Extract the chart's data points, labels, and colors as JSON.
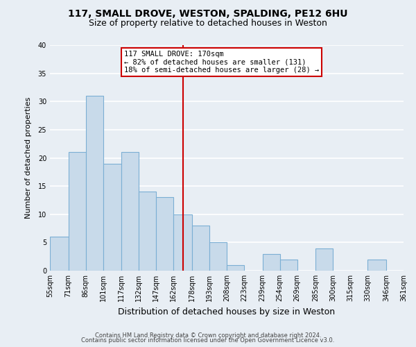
{
  "title": "117, SMALL DROVE, WESTON, SPALDING, PE12 6HU",
  "subtitle": "Size of property relative to detached houses in Weston",
  "xlabel": "Distribution of detached houses by size in Weston",
  "ylabel": "Number of detached properties",
  "footer_line1": "Contains HM Land Registry data © Crown copyright and database right 2024.",
  "footer_line2": "Contains public sector information licensed under the Open Government Licence v3.0.",
  "annotation_line1": "117 SMALL DROVE: 170sqm",
  "annotation_line2": "← 82% of detached houses are smaller (131)",
  "annotation_line3": "18% of semi-detached houses are larger (28) →",
  "bar_left_edges": [
    55,
    71,
    86,
    101,
    117,
    132,
    147,
    162,
    178,
    193,
    208,
    223,
    239,
    254,
    269,
    285,
    300,
    315,
    330,
    346
  ],
  "bar_widths": [
    16,
    15,
    15,
    16,
    15,
    15,
    15,
    16,
    15,
    15,
    15,
    16,
    15,
    15,
    15,
    15,
    15,
    15,
    16,
    15
  ],
  "bar_heights": [
    6,
    21,
    31,
    19,
    21,
    14,
    13,
    10,
    8,
    5,
    1,
    0,
    3,
    2,
    0,
    4,
    0,
    0,
    2,
    0
  ],
  "bar_color": "#c8daea",
  "bar_edgecolor": "#7bafd4",
  "ref_line_x": 170,
  "ref_line_color": "#cc0000",
  "ref_box_color": "#cc0000",
  "ylim": [
    0,
    40
  ],
  "yticks": [
    0,
    5,
    10,
    15,
    20,
    25,
    30,
    35,
    40
  ],
  "xtick_labels": [
    "55sqm",
    "71sqm",
    "86sqm",
    "101sqm",
    "117sqm",
    "132sqm",
    "147sqm",
    "162sqm",
    "178sqm",
    "193sqm",
    "208sqm",
    "223sqm",
    "239sqm",
    "254sqm",
    "269sqm",
    "285sqm",
    "300sqm",
    "315sqm",
    "330sqm",
    "346sqm",
    "361sqm"
  ],
  "bg_color": "#e8eef4",
  "grid_color": "#ffffff",
  "title_fontsize": 10,
  "subtitle_fontsize": 9,
  "xlabel_fontsize": 9,
  "ylabel_fontsize": 8,
  "tick_fontsize": 7,
  "footer_fontsize": 6
}
